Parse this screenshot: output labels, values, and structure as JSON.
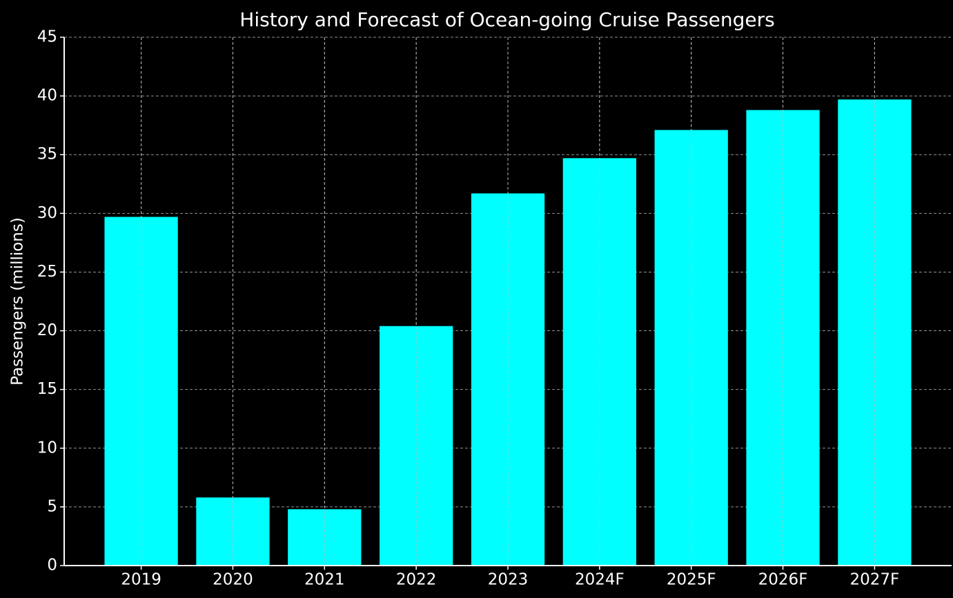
{
  "chart_data": {
    "type": "bar",
    "title": "History and Forecast of Ocean-going Cruise Passengers",
    "ylabel": "Passengers (millions)",
    "categories": [
      "2019",
      "2020",
      "2021",
      "2022",
      "2023",
      "2024F",
      "2025F",
      "2026F",
      "2027F"
    ],
    "values": [
      29.7,
      5.8,
      4.8,
      20.4,
      31.7,
      34.7,
      37.1,
      38.8,
      39.7
    ],
    "color": "#00ffff",
    "ylim": [
      0,
      45
    ],
    "yticks": [
      0,
      5,
      10,
      15,
      20,
      25,
      30,
      35,
      40,
      45
    ],
    "grid": true
  }
}
